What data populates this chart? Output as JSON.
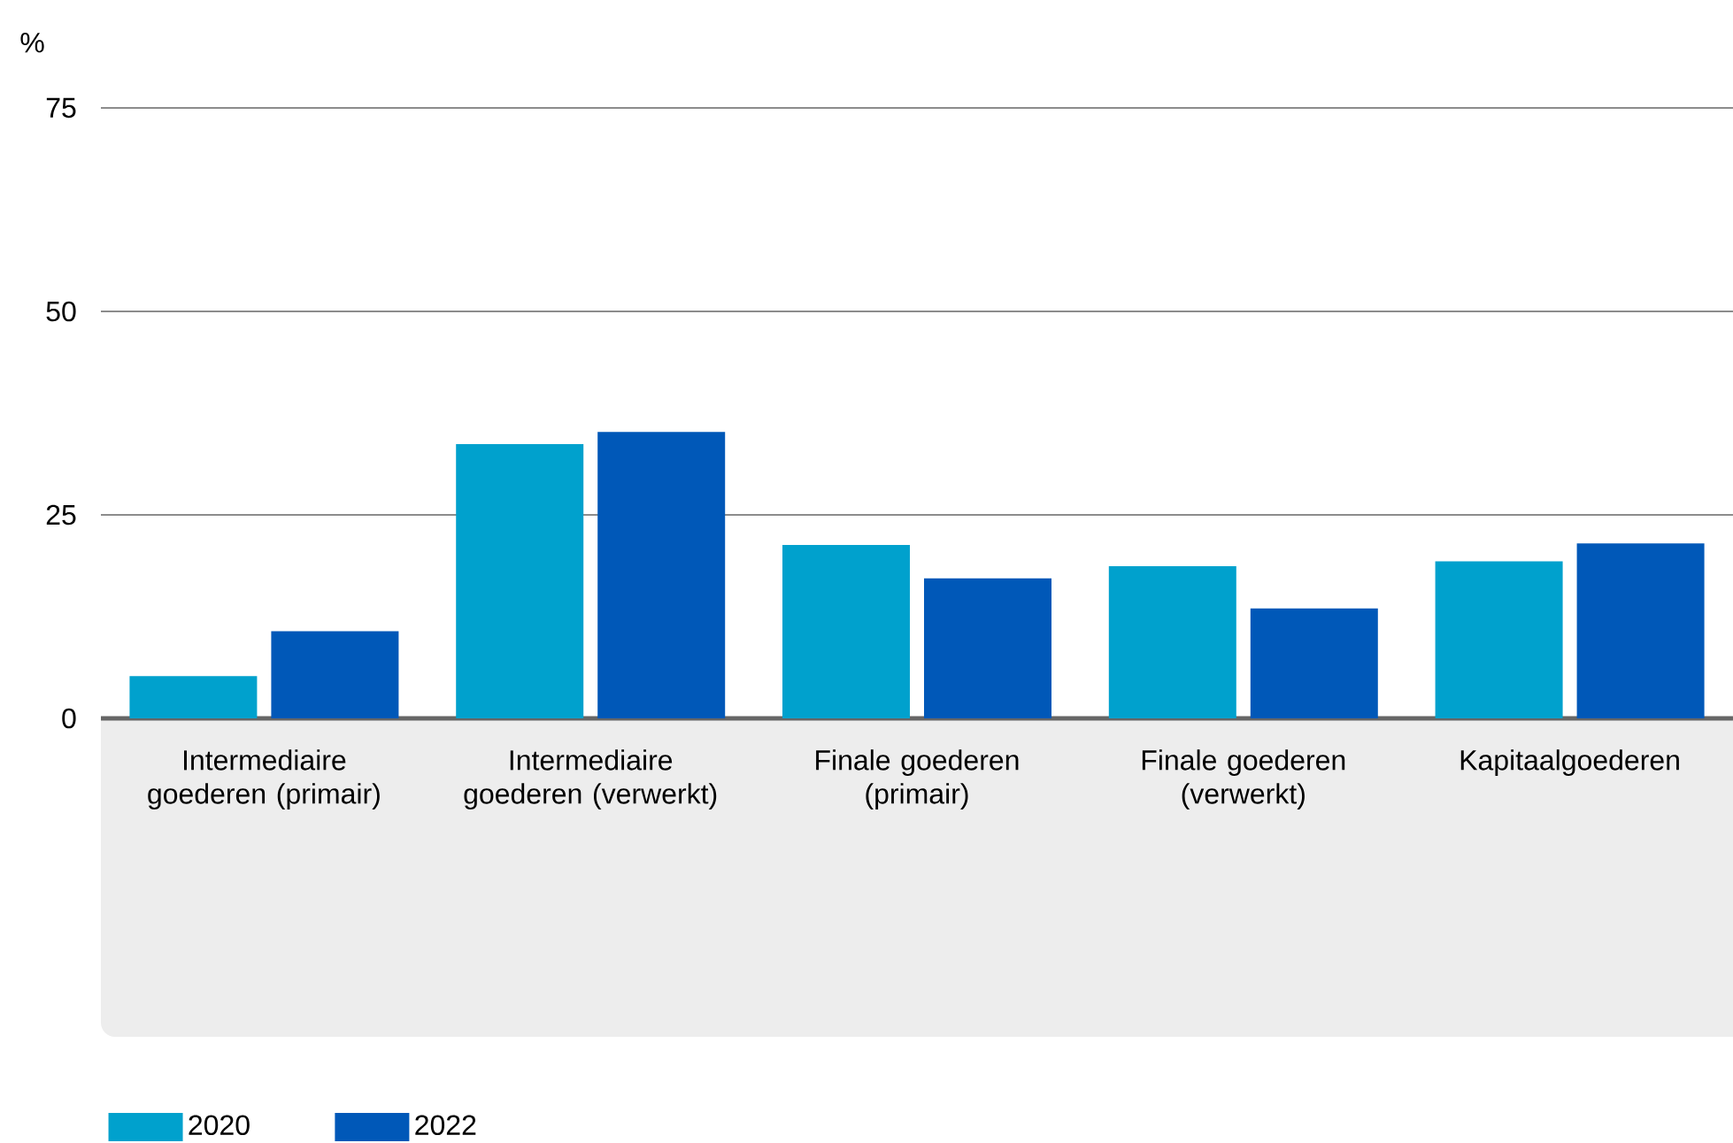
{
  "chart_data": {
    "type": "bar",
    "ylabel": "%",
    "categories": [
      "Intermediaire goederen (primair)",
      "Intermediaire goederen (verwerkt)",
      "Finale goederen (primair)",
      "Finale goederen (verwerkt)",
      "Kapitaalgoederen"
    ],
    "series": [
      {
        "name": "2020",
        "color": "#00a1cd",
        "values": [
          5.2,
          33.7,
          21.3,
          18.7,
          19.3
        ]
      },
      {
        "name": "2022",
        "color": "#0058b8",
        "values": [
          10.7,
          35.2,
          17.2,
          13.5,
          21.5
        ]
      }
    ],
    "ylim": [
      0,
      75
    ],
    "yticks": [
      0,
      25,
      50,
      75
    ],
    "grid": "y",
    "legend": "bottom left"
  }
}
